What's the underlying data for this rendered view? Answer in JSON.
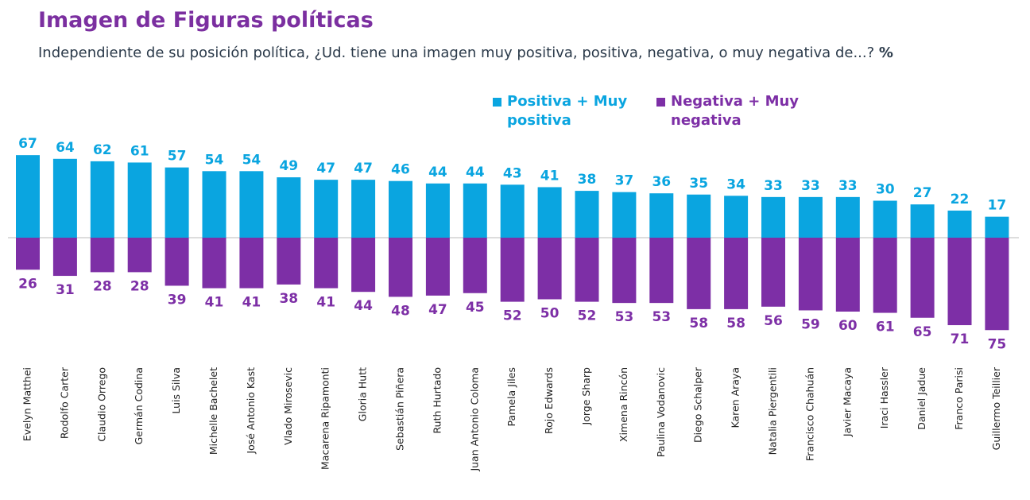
{
  "chart_data": {
    "type": "diverging_bar",
    "title": "Imagen de Figuras políticas",
    "subtitle": "Independiente de su posición política, ¿Ud. tiene una imagen muy positiva, positiva, negativa, o muy negativa de...?",
    "unit": "%",
    "categories": [
      "Evelyn Matthei",
      "Rodolfo Carter",
      "Claudio Orrego",
      "Germán Codina",
      "Luis Silva",
      "Michelle Bachelet",
      "José Antonio Kast",
      "Vlado Mirosevic",
      "Macarena Ripamonti",
      "Gloria Hutt",
      "Sebastián Piñera",
      "Ruth Hurtado",
      "Juan Antonio Coloma",
      "Pamela Jiles",
      "Rojo Edwards",
      "Jorge Sharp",
      "Ximena Rincón",
      "Paulina Vodanovic",
      "Diego Schalper",
      "Karen Araya",
      "Natalia Piergentili",
      "Francisco Chahuán",
      "Javier Macaya",
      "Iraci Hassler",
      "Daniel Jadue",
      "Franco Parisi",
      "Guillermo Teillier"
    ],
    "series": [
      {
        "name": "Positiva + Muy positiva",
        "color": "#0aa5e0",
        "values": [
          67,
          64,
          62,
          61,
          57,
          54,
          54,
          49,
          47,
          47,
          46,
          44,
          44,
          43,
          41,
          38,
          37,
          36,
          35,
          34,
          33,
          33,
          33,
          30,
          27,
          22,
          17
        ]
      },
      {
        "name": "Negativa + Muy negativa",
        "color": "#7d2fa6",
        "values": [
          26,
          31,
          28,
          28,
          39,
          41,
          41,
          38,
          41,
          44,
          48,
          47,
          45,
          52,
          50,
          52,
          53,
          53,
          58,
          58,
          56,
          59,
          60,
          61,
          65,
          71,
          75
        ]
      }
    ]
  }
}
